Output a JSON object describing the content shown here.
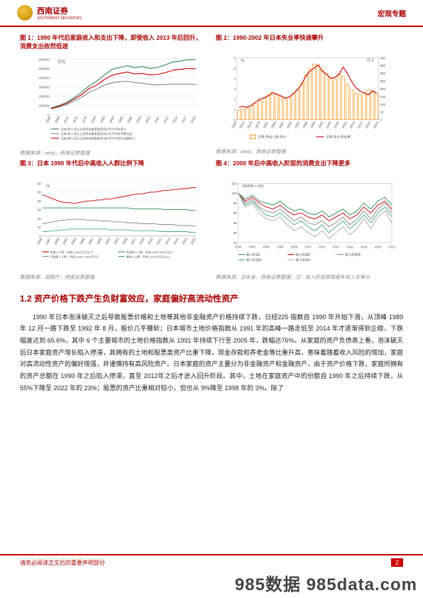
{
  "header": {
    "brand": "西南证券",
    "brand_sub": "SOUTHWEST SECURITIES",
    "right": "宏观专题"
  },
  "chart1": {
    "title": "图 1：1990 年代后家庭收入和支出下降，即使收入 2013 年后回升，消费支出依然低迷",
    "ylabel": "日元",
    "x_ticks": [
      "1965",
      "1969",
      "1972",
      "1976",
      "1979",
      "1983",
      "1986",
      "1990",
      "1993",
      "1996",
      "2000",
      "2003",
      "2007",
      "2010",
      "2013",
      "2017",
      "2020"
    ],
    "y_ticks": [
      0,
      100000,
      200000,
      300000,
      400000,
      500000,
      600000
    ],
    "series": [
      {
        "label": "日本:两人及以上的劳动者家庭(非农):年平均月收入",
        "color": "#2e8b57",
        "values": [
          70000,
          95000,
          130000,
          180000,
          240000,
          310000,
          360000,
          430000,
          490000,
          510000,
          530000,
          510000,
          520000,
          500000,
          510000,
          540000,
          570000,
          580000,
          595000,
          595000
        ]
      },
      {
        "label": "日本:两人及以上的劳动者家庭(非农):年平均月消费支出",
        "color": "#888",
        "values": [
          60000,
          80000,
          105000,
          145000,
          185000,
          240000,
          275000,
          320000,
          345000,
          355000,
          360000,
          345000,
          340000,
          325000,
          320000,
          325000,
          330000,
          330000,
          330000,
          325000
        ]
      },
      {
        "label": "日本:两人及以上的劳动者家庭(非农):年平均月可支配收入",
        "color": "#c00",
        "values": [
          65000,
          88000,
          118000,
          165000,
          215000,
          280000,
          320000,
          380000,
          425000,
          445000,
          460000,
          440000,
          445000,
          430000,
          435000,
          455000,
          480000,
          490000,
          500000,
          495000
        ]
      }
    ],
    "source": "数据来源：wind，西南证券整理"
  },
  "chart2": {
    "title": "图 2：1990-2002 年日本失业率快速攀升",
    "yl_label": "%",
    "yr_label": "万人",
    "x_ticks": [
      "1969",
      "1972",
      "1975",
      "1978",
      "1981",
      "1984",
      "1987",
      "1990",
      "1993",
      "1996",
      "1999",
      "2002",
      "2005",
      "2008",
      "2011",
      "2014",
      "2017",
      "2020",
      "2023"
    ],
    "yl_ticks": [
      0,
      1,
      2,
      3,
      4,
      5,
      6
    ],
    "yr_ticks": [
      0,
      50,
      100,
      150,
      200,
      250,
      300,
      350,
      400
    ],
    "bars": {
      "label": "日本:失业人数:总计",
      "color": "#ff8c00",
      "values": [
        60,
        70,
        75,
        90,
        105,
        125,
        140,
        160,
        175,
        165,
        155,
        135,
        145,
        170,
        195,
        235,
        290,
        330,
        360,
        355,
        320,
        295,
        265,
        260,
        295,
        280,
        230,
        195,
        170,
        165,
        175,
        195,
        180,
        170
      ]
    },
    "line": {
      "label": "日本:总计:失业率",
      "color": "#c00",
      "values": [
        1.2,
        1.3,
        1.2,
        1.4,
        1.7,
        2.0,
        2.1,
        2.3,
        2.6,
        2.5,
        2.3,
        2.1,
        2.2,
        2.5,
        2.9,
        3.4,
        4.2,
        4.7,
        5.0,
        5.3,
        4.7,
        4.4,
        4.0,
        4.1,
        4.4,
        5.1,
        4.5,
        3.7,
        3.1,
        2.8,
        2.6,
        2.4,
        2.8,
        2.6
      ]
    },
    "source": "数据来源：wind，西南证券整理"
  },
  "chart3": {
    "title": "图 3：日本 1990 年代后中高收入人群比例下降",
    "ylabel": "%",
    "x_ticks": [
      "1986",
      "1987",
      "1989",
      "1991",
      "1993",
      "1995",
      "1997",
      "1999",
      "2001",
      "2003",
      "2005",
      "2007",
      "2009",
      "2010",
      "2012",
      "2014",
      "2016",
      "2018",
      "2020"
    ],
    "y_ticks": [
      0,
      10,
      20,
      30,
      40,
      50,
      60
    ],
    "series": [
      {
        "label": "低收入人群：年收入300万日元以下",
        "color": "#c00",
        "values": [
          47,
          45,
          43,
          41,
          39,
          38,
          38,
          37,
          38,
          39,
          40,
          40,
          41,
          41,
          42,
          42,
          43,
          44,
          45,
          46,
          47,
          48,
          48,
          49,
          50,
          50,
          51,
          52,
          52,
          53,
          53,
          54,
          54,
          55,
          55
        ]
      },
      {
        "label": "中低收入人群：年收入300~600万日元",
        "color": "#2e8b57",
        "values": [
          32,
          32,
          32,
          32,
          32,
          32,
          32,
          32,
          32,
          32,
          32,
          32,
          32,
          32,
          32,
          32,
          32,
          32,
          32,
          32,
          31,
          31,
          31,
          31,
          31,
          31,
          31,
          30,
          30,
          30,
          30,
          30,
          30,
          29,
          29
        ]
      },
      {
        "label": "中高收入人群：年收入600~1000万日元",
        "color": "#888",
        "values": [
          14,
          15,
          16,
          17,
          18,
          18,
          19,
          19,
          19,
          19,
          18,
          18,
          18,
          17,
          17,
          17,
          16,
          16,
          16,
          15,
          15,
          15,
          14,
          14,
          14,
          14,
          13,
          13,
          13,
          13,
          12,
          12,
          12,
          12,
          11
        ]
      },
      {
        "label": "高收入人群：年收入1000万日元以上",
        "color": "#4a8",
        "values": [
          5,
          5,
          6,
          6,
          7,
          7,
          8,
          8,
          8,
          8,
          8,
          8,
          8,
          8,
          8,
          7,
          7,
          7,
          7,
          7,
          6,
          6,
          6,
          6,
          6,
          6,
          5,
          5,
          5,
          5,
          5,
          5,
          5,
          4,
          4
        ]
      }
    ],
    "source": "数据来源：国税厅，西南证券整理"
  },
  "chart4": {
    "title": "图 4：2000 年后中高收入阶层的消费支出下降更多",
    "note": "2000年＝100",
    "x_ticks": [
      "2000",
      "2002",
      "2004",
      "2006",
      "2008",
      "2010",
      "2012",
      "2014",
      "2016",
      "2018",
      "2020",
      "2022"
    ],
    "y_ticks": [
      75,
      80,
      85,
      90,
      95,
      100,
      105
    ],
    "series": [
      {
        "label": "收入阶层Ⅰ",
        "color": "#2e8b57",
        "values": [
          100,
          97,
          99,
          96,
          95,
          94,
          96,
          93,
          91,
          92,
          90,
          89,
          91,
          88,
          90,
          92,
          89,
          91,
          95,
          92,
          96,
          98,
          94
        ]
      },
      {
        "label": "收入阶层Ⅱ",
        "color": "#c00",
        "values": [
          100,
          96,
          98,
          95,
          93,
          92,
          94,
          91,
          89,
          90,
          88,
          87,
          89,
          86,
          88,
          90,
          87,
          89,
          93,
          90,
          94,
          96,
          92
        ]
      },
      {
        "label": "收入阶层Ⅲ",
        "color": "#888",
        "values": [
          100,
          95,
          97,
          93,
          91,
          90,
          92,
          89,
          86,
          88,
          85,
          84,
          86,
          83,
          85,
          88,
          84,
          87,
          91,
          87,
          92,
          95,
          90
        ]
      },
      {
        "label": "收入阶层Ⅳ",
        "color": "#4a8",
        "values": [
          100,
          94,
          96,
          92,
          89,
          88,
          90,
          87,
          84,
          86,
          83,
          81,
          84,
          80,
          83,
          86,
          82,
          85,
          89,
          85,
          90,
          93,
          88
        ]
      },
      {
        "label": "收入阶层Ⅴ",
        "color": "#aaa",
        "values": [
          100,
          93,
          95,
          90,
          87,
          86,
          88,
          84,
          81,
          83,
          80,
          78,
          81,
          77,
          80,
          83,
          79,
          82,
          87,
          82,
          88,
          91,
          85
        ]
      }
    ],
    "source": "数据来源：总务省，西南证券整理；注：收入阶层按家庭年收入五等分"
  },
  "section": {
    "num": "1.2",
    "title": "资产价格下跌产生负财富效应，家庭偏好高流动性资产",
    "body": "1990 年日本泡沫破灭之后导致股票价格和土地等其他非金融资产价格持续下跌，日经225 指数自 1990 年开始下滑，从顶峰 1989 年 12 月一路下跌至 1992 年 8 月，股价几乎腰斩；日本城市土地价格指数从 1991 年的高峰一路走低至 2014 年才逐渐得到企稳，下跌幅度达到 65.6%，其中 6 个主要城市的土地价格指数从 1991 年持续下行至 2005 年，跌幅达76%。从家庭的资产负债表上看，泡沫破灭后日本家庭资产增长陷入停滞，其拥有的土地和股票类资产比重下降，现金存款和养老金等比重升高，意味着随着收入风险的增加，家庭对高流动性资产的偏好增强，并谨慎持有高风险资产。日本家庭的资产主要分为非金融资产和金融资产，由于资产价格下跌，家庭所拥有的资产总额在 1990 年之后陷入停滞，直至 2012年之后才进入回升阶段。其中，土地在家庭资产中的份额自 1990 年之后持续下跌，从 55%下降至 2022 年的 23%；股票的资产比重相对较小，但也从 9%降至 1998 年的 3%。除了"
  },
  "footer": {
    "left": "请务必阅读正文后的重要声明部分",
    "page": "2"
  },
  "watermark": "985数据 985data.com"
}
